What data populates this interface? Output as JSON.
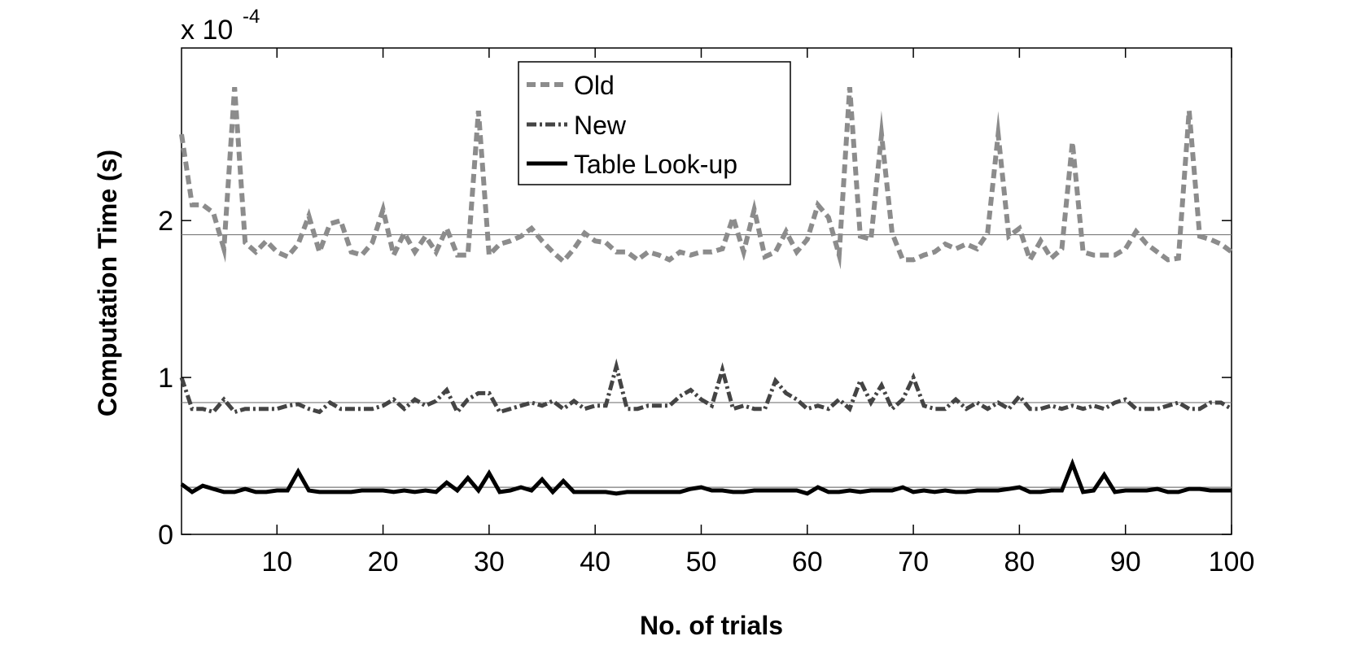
{
  "chart_data": {
    "type": "line",
    "xlabel": "No. of trials",
    "ylabel": "Computation Time (s)",
    "y_multiplier_label": "x 10",
    "y_multiplier_exponent": "-4",
    "xlim": [
      1,
      100
    ],
    "ylim": [
      0,
      3.1
    ],
    "xticks": [
      10,
      20,
      30,
      40,
      50,
      60,
      70,
      80,
      90,
      100
    ],
    "yticks": [
      0,
      1,
      2
    ],
    "grid": false,
    "legend_position": "top-center",
    "x": [
      1,
      2,
      3,
      4,
      5,
      6,
      7,
      8,
      9,
      10,
      11,
      12,
      13,
      14,
      15,
      16,
      17,
      18,
      19,
      20,
      21,
      22,
      23,
      24,
      25,
      26,
      27,
      28,
      29,
      30,
      31,
      32,
      33,
      34,
      35,
      36,
      37,
      38,
      39,
      40,
      41,
      42,
      43,
      44,
      45,
      46,
      47,
      48,
      49,
      50,
      51,
      52,
      53,
      54,
      55,
      56,
      57,
      58,
      59,
      60,
      61,
      62,
      63,
      64,
      65,
      66,
      67,
      68,
      69,
      70,
      71,
      72,
      73,
      74,
      75,
      76,
      77,
      78,
      79,
      80,
      81,
      82,
      83,
      84,
      85,
      86,
      87,
      88,
      89,
      90,
      91,
      92,
      93,
      94,
      95,
      96,
      97,
      98,
      99,
      100
    ],
    "series": [
      {
        "name": "Old",
        "color": "#8c8c8c",
        "style": "dashed",
        "mean": 1.91,
        "values": [
          2.55,
          2.1,
          2.1,
          2.05,
          1.82,
          2.85,
          1.86,
          1.8,
          1.87,
          1.8,
          1.77,
          1.85,
          2.03,
          1.8,
          1.98,
          2.0,
          1.8,
          1.78,
          1.86,
          2.07,
          1.78,
          1.92,
          1.8,
          1.9,
          1.8,
          1.95,
          1.78,
          1.78,
          2.7,
          1.78,
          1.85,
          1.87,
          1.9,
          1.95,
          1.87,
          1.8,
          1.74,
          1.82,
          1.92,
          1.87,
          1.86,
          1.8,
          1.8,
          1.75,
          1.8,
          1.78,
          1.75,
          1.8,
          1.78,
          1.8,
          1.8,
          1.82,
          2.02,
          1.8,
          2.07,
          1.77,
          1.8,
          1.93,
          1.8,
          1.88,
          2.1,
          2.02,
          1.78,
          2.85,
          1.9,
          1.88,
          2.55,
          1.92,
          1.75,
          1.75,
          1.78,
          1.8,
          1.85,
          1.82,
          1.85,
          1.82,
          1.92,
          2.55,
          1.9,
          1.95,
          1.75,
          1.87,
          1.76,
          1.82,
          2.5,
          1.8,
          1.78,
          1.78,
          1.78,
          1.82,
          1.93,
          1.85,
          1.8,
          1.75,
          1.76,
          2.7,
          1.9,
          1.88,
          1.85,
          1.8
        ]
      },
      {
        "name": "New",
        "color": "#444444",
        "style": "dashdot",
        "mean": 0.84,
        "values": [
          1.0,
          0.8,
          0.8,
          0.78,
          0.86,
          0.78,
          0.8,
          0.8,
          0.8,
          0.8,
          0.82,
          0.83,
          0.8,
          0.78,
          0.84,
          0.8,
          0.8,
          0.8,
          0.8,
          0.82,
          0.86,
          0.8,
          0.86,
          0.82,
          0.85,
          0.92,
          0.78,
          0.86,
          0.9,
          0.9,
          0.78,
          0.8,
          0.82,
          0.84,
          0.82,
          0.85,
          0.8,
          0.85,
          0.8,
          0.82,
          0.82,
          1.07,
          0.8,
          0.8,
          0.82,
          0.82,
          0.82,
          0.88,
          0.92,
          0.86,
          0.82,
          1.05,
          0.8,
          0.82,
          0.8,
          0.8,
          0.98,
          0.9,
          0.86,
          0.8,
          0.82,
          0.8,
          0.86,
          0.8,
          0.98,
          0.84,
          0.95,
          0.8,
          0.86,
          1.0,
          0.82,
          0.8,
          0.8,
          0.86,
          0.8,
          0.84,
          0.8,
          0.84,
          0.8,
          0.88,
          0.8,
          0.8,
          0.82,
          0.8,
          0.82,
          0.8,
          0.82,
          0.8,
          0.84,
          0.86,
          0.8,
          0.8,
          0.8,
          0.82,
          0.84,
          0.8,
          0.8,
          0.84,
          0.84,
          0.8
        ]
      },
      {
        "name": "Table Look-up",
        "color": "#000000",
        "style": "solid",
        "mean": 0.3,
        "values": [
          0.32,
          0.27,
          0.31,
          0.29,
          0.27,
          0.27,
          0.29,
          0.27,
          0.27,
          0.28,
          0.28,
          0.4,
          0.28,
          0.27,
          0.27,
          0.27,
          0.27,
          0.28,
          0.28,
          0.28,
          0.27,
          0.28,
          0.27,
          0.28,
          0.27,
          0.33,
          0.28,
          0.36,
          0.28,
          0.39,
          0.27,
          0.28,
          0.3,
          0.28,
          0.35,
          0.27,
          0.34,
          0.27,
          0.27,
          0.27,
          0.27,
          0.26,
          0.27,
          0.27,
          0.27,
          0.27,
          0.27,
          0.27,
          0.29,
          0.3,
          0.28,
          0.28,
          0.27,
          0.27,
          0.28,
          0.28,
          0.28,
          0.28,
          0.28,
          0.26,
          0.3,
          0.27,
          0.27,
          0.28,
          0.27,
          0.28,
          0.28,
          0.28,
          0.3,
          0.27,
          0.28,
          0.27,
          0.28,
          0.27,
          0.27,
          0.28,
          0.28,
          0.28,
          0.29,
          0.3,
          0.27,
          0.27,
          0.28,
          0.28,
          0.45,
          0.27,
          0.28,
          0.38,
          0.27,
          0.28,
          0.28,
          0.28,
          0.29,
          0.27,
          0.27,
          0.29,
          0.29,
          0.28,
          0.28,
          0.28
        ]
      }
    ]
  }
}
